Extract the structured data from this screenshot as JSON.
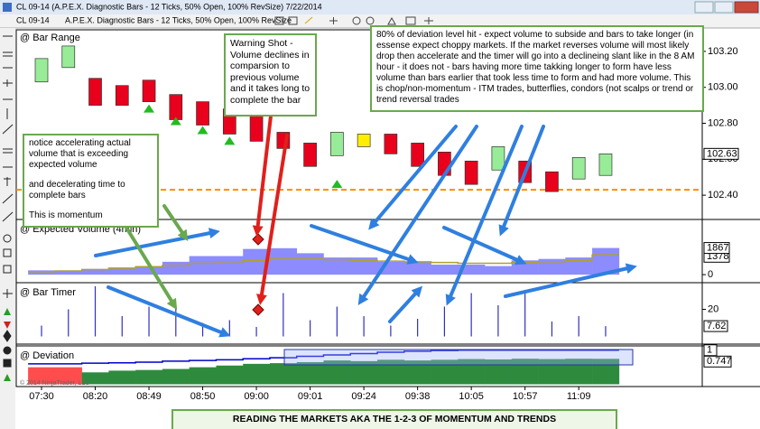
{
  "window": {
    "title": "CL 09-14 (A.P.E.X. Diagnostic Bars - 12 Ticks, 50% Open, 100% RevSize)  7/22/2014",
    "instrument": "CL 09-14",
    "bar_type": "A.P.E.X. Diagnostic Bars - 12 Ticks, 50% Open, 100% RevSize"
  },
  "panels": {
    "bar_range": {
      "label": "@ Bar Range",
      "ylim": [
        102.27,
        103.315
      ],
      "yticks": [
        {
          "value": 103.2,
          "label": "103.20"
        },
        {
          "value": 103,
          "label": "103.00"
        },
        {
          "value": 102.8,
          "label": "102.80"
        },
        {
          "value": 102.6,
          "label": "102.60"
        },
        {
          "value": 102.4,
          "label": "102.40"
        }
      ],
      "up_color": "#98ec98",
      "down_color": "#e8001c",
      "highlight_color": "#ffee00",
      "highlight": 12,
      "level": 102.43,
      "level_color": "#ff8c00",
      "signal_color": "#22bb22",
      "candles": [
        {
          "open": 103.03,
          "close": 103.16
        },
        {
          "open": 103.11,
          "close": 103.23
        },
        {
          "open": 103.05,
          "close": 102.9
        },
        {
          "open": 103.01,
          "close": 102.9
        },
        {
          "open": 103.04,
          "close": 102.92
        },
        {
          "open": 102.96,
          "close": 102.82
        },
        {
          "open": 102.92,
          "close": 102.79
        },
        {
          "open": 102.88,
          "close": 102.74
        },
        {
          "open": 102.84,
          "close": 102.7
        },
        {
          "open": 102.75,
          "close": 102.66
        },
        {
          "open": 102.69,
          "close": 102.56
        },
        {
          "open": 102.62,
          "close": 102.75
        },
        {
          "open": 102.74,
          "close": 102.67
        },
        {
          "open": 102.74,
          "close": 102.63
        },
        {
          "open": 102.69,
          "close": 102.56
        },
        {
          "open": 102.64,
          "close": 102.51
        },
        {
          "open": 102.59,
          "close": 102.46
        },
        {
          "open": 102.54,
          "close": 102.67
        },
        {
          "open": 102.59,
          "close": 102.47
        },
        {
          "open": 102.53,
          "close": 102.42
        },
        {
          "open": 102.49,
          "close": 102.61
        },
        {
          "open": 102.51,
          "close": 102.63
        }
      ],
      "signals": [
        null,
        null,
        null,
        null,
        102.88,
        102.81,
        102.76,
        102.7,
        null,
        null,
        null,
        102.46,
        null,
        null,
        null,
        null,
        null,
        null,
        null,
        null,
        null,
        null
      ]
    },
    "volume": {
      "label": "@ Expected Volume (4min)",
      "ylim": [
        -500,
        3800
      ],
      "yticks": [
        0
      ],
      "bars": {
        "color": "#8c8cff",
        "values": [
          300,
          300,
          400,
          500,
          600,
          900,
          1300,
          1300,
          1800,
          1850,
          1500,
          1200,
          1200,
          900,
          900,
          700,
          700,
          600,
          1000,
          1100,
          1200,
          1867
        ]
      },
      "line": {
        "color": "#b0a030",
        "values": [
          200,
          250,
          350,
          450,
          550,
          650,
          800,
          900,
          1000,
          1100,
          1100,
          1050,
          1000,
          950,
          900,
          850,
          800,
          800,
          850,
          900,
          1000,
          1378
        ]
      }
    },
    "timer": {
      "label": "@ Bar Timer",
      "ylim": [
        -5,
        39
      ],
      "yticks": [
        20
      ],
      "color": "#3030c0",
      "values": [
        8,
        20,
        37,
        15,
        22,
        25,
        10,
        12,
        7,
        32,
        12,
        22,
        15,
        8,
        13,
        22,
        32,
        23,
        34,
        11,
        15,
        7.62
      ]
    },
    "deviation": {
      "label": "@ Deviation",
      "ylim": [
        -0.04,
        1.1
      ],
      "bars": {
        "colors": [
          "#ff4d4d",
          "#ff4d4d",
          "#2e8b3e",
          "#2e8b3e",
          "#2e8b3e",
          "#2e8b3e",
          "#2e8b3e",
          "#2e8b3e",
          "#2e8b3e",
          "#2e8b3e",
          "#2e8b3e",
          "#2e8b3e",
          "#2e8b3e",
          "#2e8b3e",
          "#2e8b3e",
          "#2e8b3e",
          "#2e8b3e",
          "#2e8b3e",
          "#2e8b3e",
          "#2e8b3e",
          "#2e8b3e",
          "#2e8b3e"
        ],
        "values": [
          0.5,
          0.5,
          0.35,
          0.4,
          0.42,
          0.45,
          0.5,
          0.55,
          0.6,
          0.62,
          0.65,
          0.7,
          0.68,
          0.72,
          0.7,
          0.72,
          0.74,
          0.73,
          0.75,
          0.74,
          0.75,
          0.747
        ]
      },
      "line": {
        "color": "#0000cc",
        "values": [
          0.6,
          0.6,
          0.62,
          0.63,
          0.65,
          0.68,
          0.7,
          0.72,
          0.75,
          0.78,
          0.82,
          0.86,
          0.9,
          0.94,
          0.97,
          0.99,
          1,
          1,
          1,
          1,
          1,
          1
        ]
      }
    }
  },
  "x_axis": {
    "labels": [
      "07:30",
      "08:20",
      "08:49",
      "08:50",
      "09:00",
      "09:01",
      "09:24",
      "09:38",
      "10:05",
      "10:57",
      "11:09"
    ]
  },
  "annotations": {
    "warning": "Warning Shot - Volume declines in comparsion to previous volume and it takes long to complete the bar",
    "deviation": "80% of deviation level hit - expect volume to subside and bars to take longer (in essense expect choppy markets. If the market reverses volume will most likely drop then accelerate and the timer will go into a declineing slant like in the 8 AM hour - it does not - bars having more time takking longer to form have less volume than bars earlier that took less time to form and had more volume. This is chop/non-momentum - ITM trades, butterflies, condors (not scalps or trend or trend reversal trades",
    "momentum": [
      "notice accelerating actual volume that is exceeding expected volume",
      "and decelerating time to complete bars",
      "This is momentum"
    ]
  },
  "banner": "READING THE MARKETS AKA THE 1-2-3 OF MOMENTUM AND TRENDS",
  "copyright": "© 2014 NinjaTrader, LLC"
}
